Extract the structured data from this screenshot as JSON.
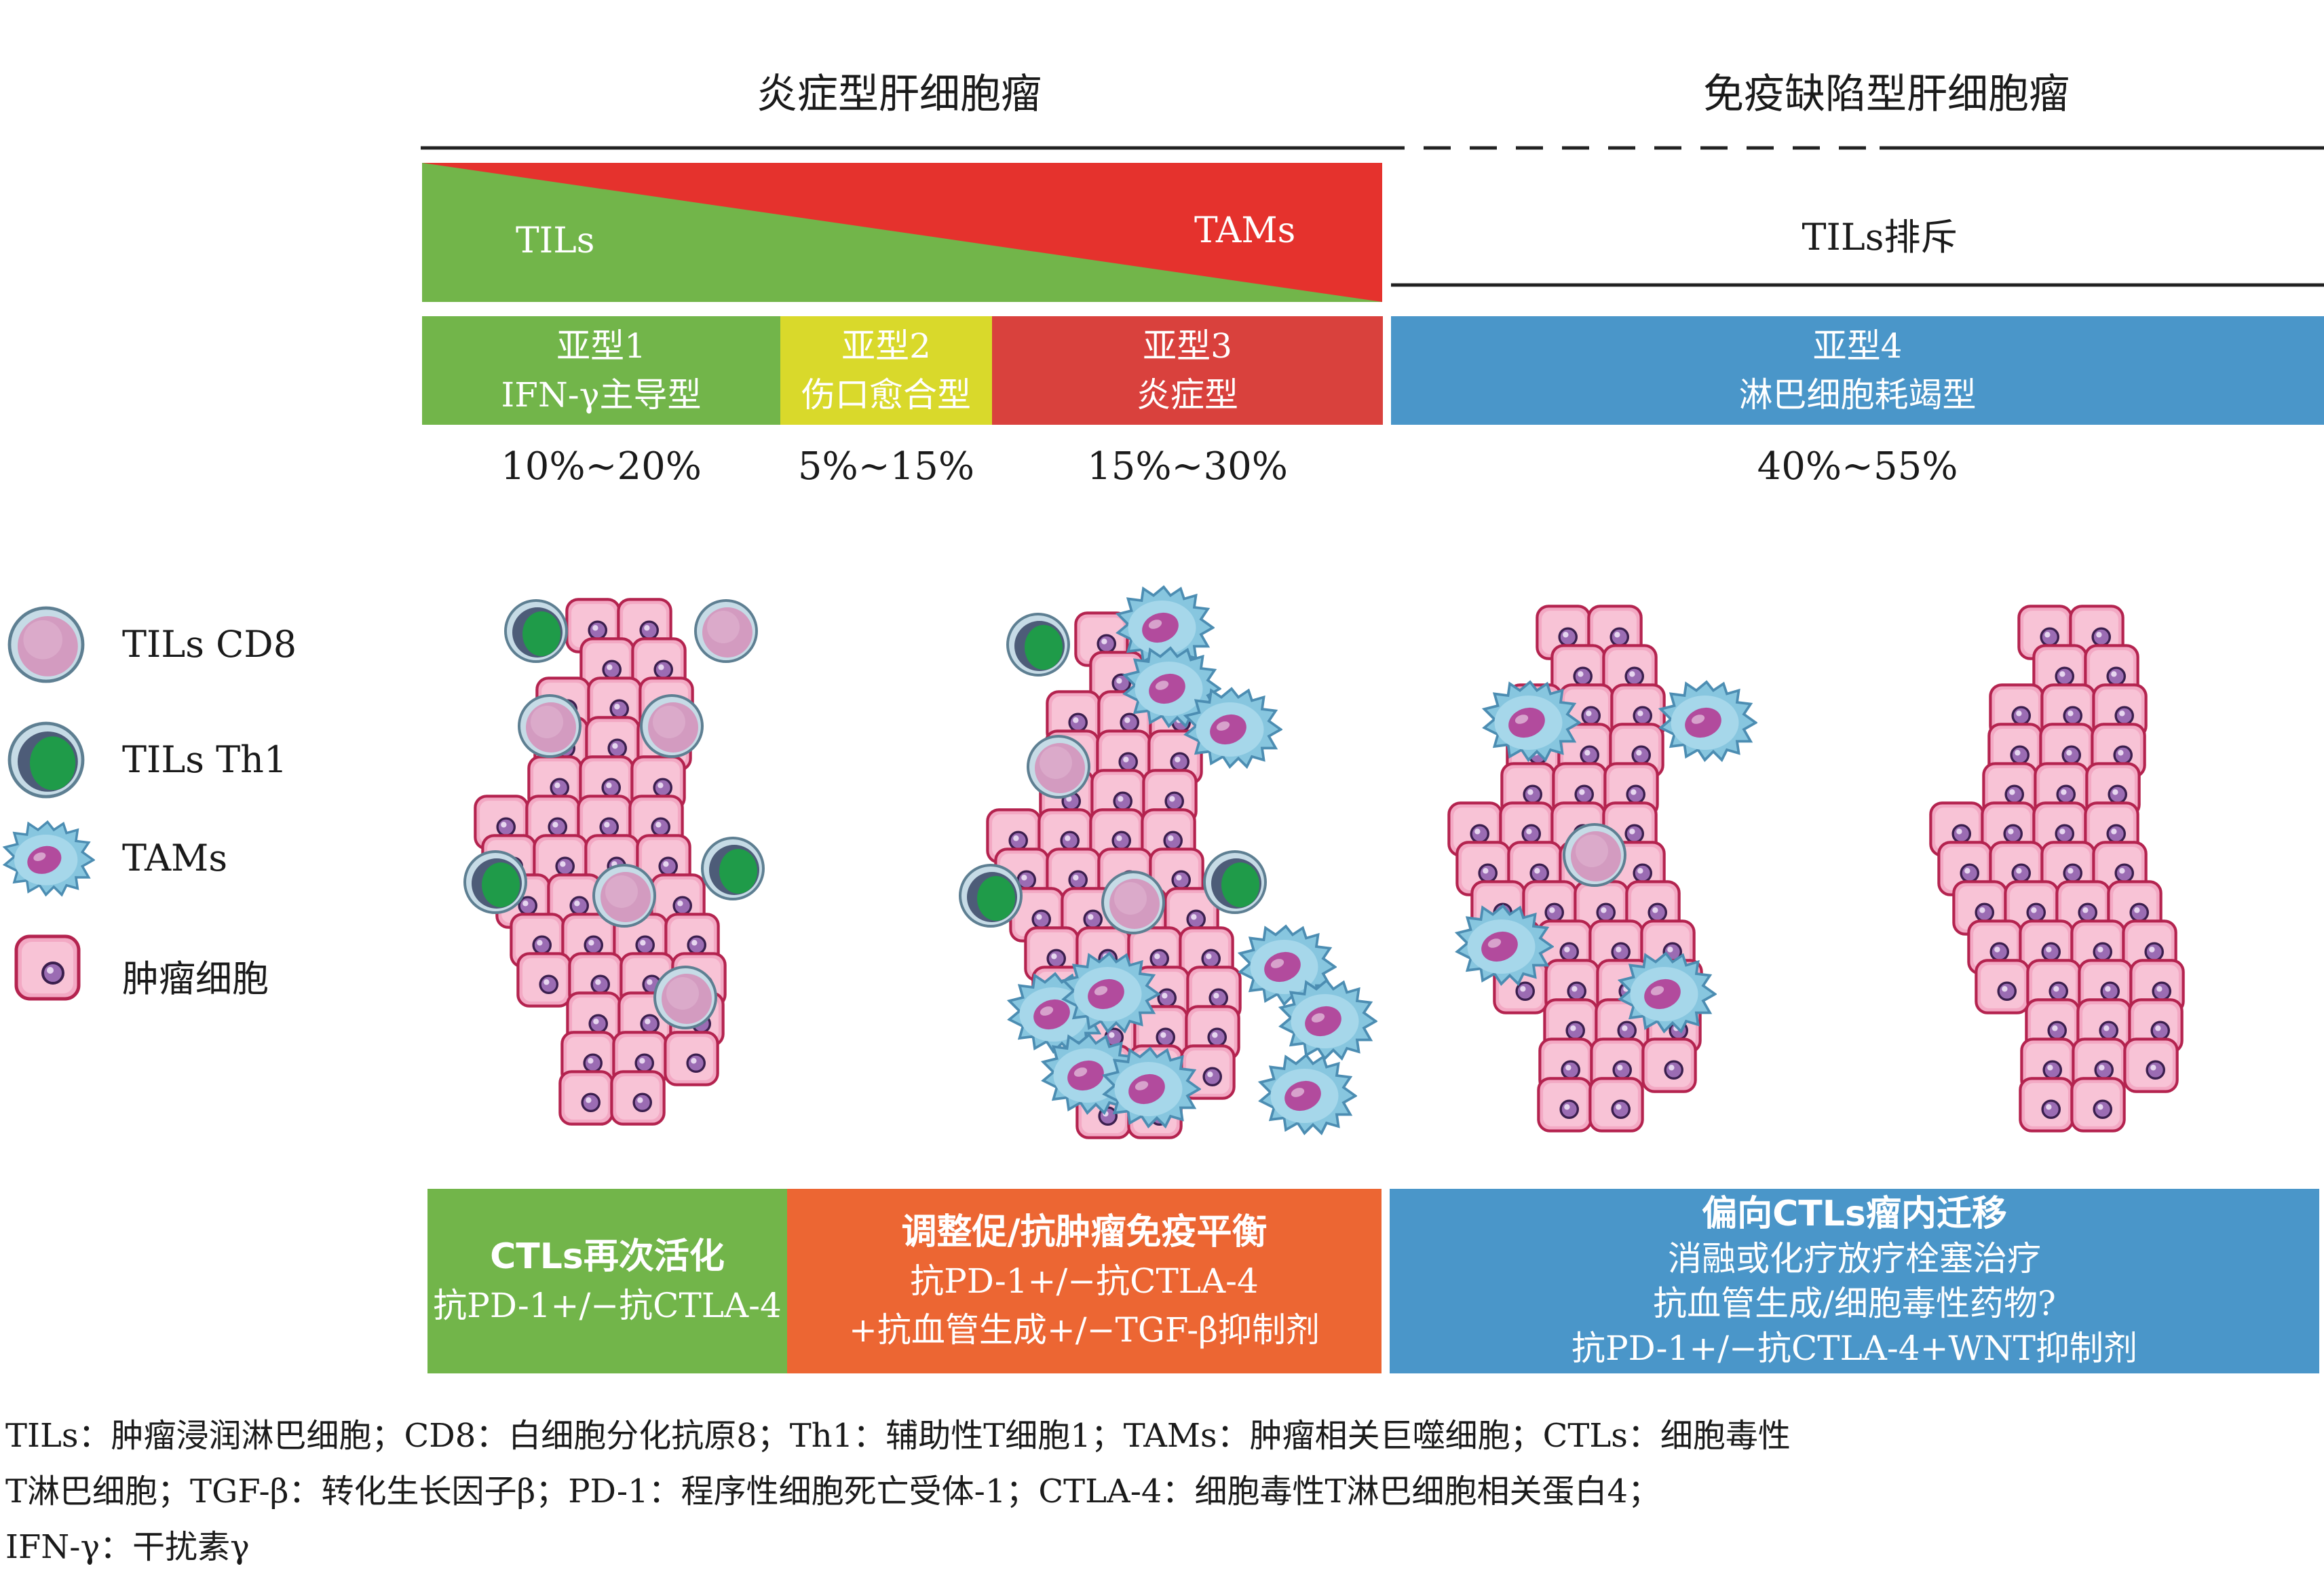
{
  "headers": {
    "inflammatory_hcc": "炎症型肝细胞瘤",
    "immune_deficient_hcc": "免疫缺陷型肝细胞瘤"
  },
  "band": {
    "tils_label": "TILs",
    "tams_label": "TAMs",
    "exclusion_label": "TILs排斥",
    "colors": {
      "green": "#72b54a",
      "red": "#e5322d"
    }
  },
  "subtypes": [
    {
      "line1": "亚型1",
      "line2": "IFN-γ主导型",
      "percent": "10%~20%",
      "color": "#72b54a"
    },
    {
      "line1": "亚型2",
      "line2": "伤口愈合型",
      "percent": "5%~15%",
      "color": "#d9d92b"
    },
    {
      "line1": "亚型3",
      "line2": "炎症型",
      "percent": "15%~30%",
      "color": "#d9413d"
    },
    {
      "line1": "亚型4",
      "line2": "淋巴细胞耗竭型",
      "percent": "40%~55%",
      "color": "#4a96c9"
    }
  ],
  "legend": [
    {
      "icon": "tils-cd8-icon",
      "label": "TILs CD8"
    },
    {
      "icon": "tils-th1-icon",
      "label": "TILs Th1"
    },
    {
      "icon": "tams-icon",
      "label": "TAMs"
    },
    {
      "icon": "tumor-cell-icon",
      "label": "肿瘤细胞"
    }
  ],
  "treatments": [
    {
      "title": "CTLs再次活化",
      "lines": [
        "抗PD-1+/−抗CTLA-4"
      ],
      "color": "#72b54a"
    },
    {
      "title": "调整促/抗肿瘤免疫平衡",
      "lines": [
        "抗PD-1+/−抗CTLA-4",
        "+抗血管生成+/−TGF-β抑制剂"
      ],
      "color": "#ec6633"
    },
    {
      "title": "偏向CTLs瘤内迁移",
      "lines": [
        "消融或化疗放疗栓塞治疗",
        "抗血管生成/细胞毒性药物?",
        "抗PD-1+/−抗CTLA-4+WNT抑制剂"
      ],
      "color": "#4a96c9"
    }
  ],
  "footnote": [
    "TILs：肿瘤浸润淋巴细胞；CD8：白细胞分化抗原8；Th1：辅助性T细胞1；TAMs：肿瘤相关巨噬细胞；CTLs：细胞毒性",
    "T淋巴细胞；TGF-β：转化生长因子β；PD-1：程序性细胞死亡受体-1；CTLA-4：细胞毒性T淋巴细胞相关蛋白4；",
    "IFN-γ：干扰素γ"
  ]
}
